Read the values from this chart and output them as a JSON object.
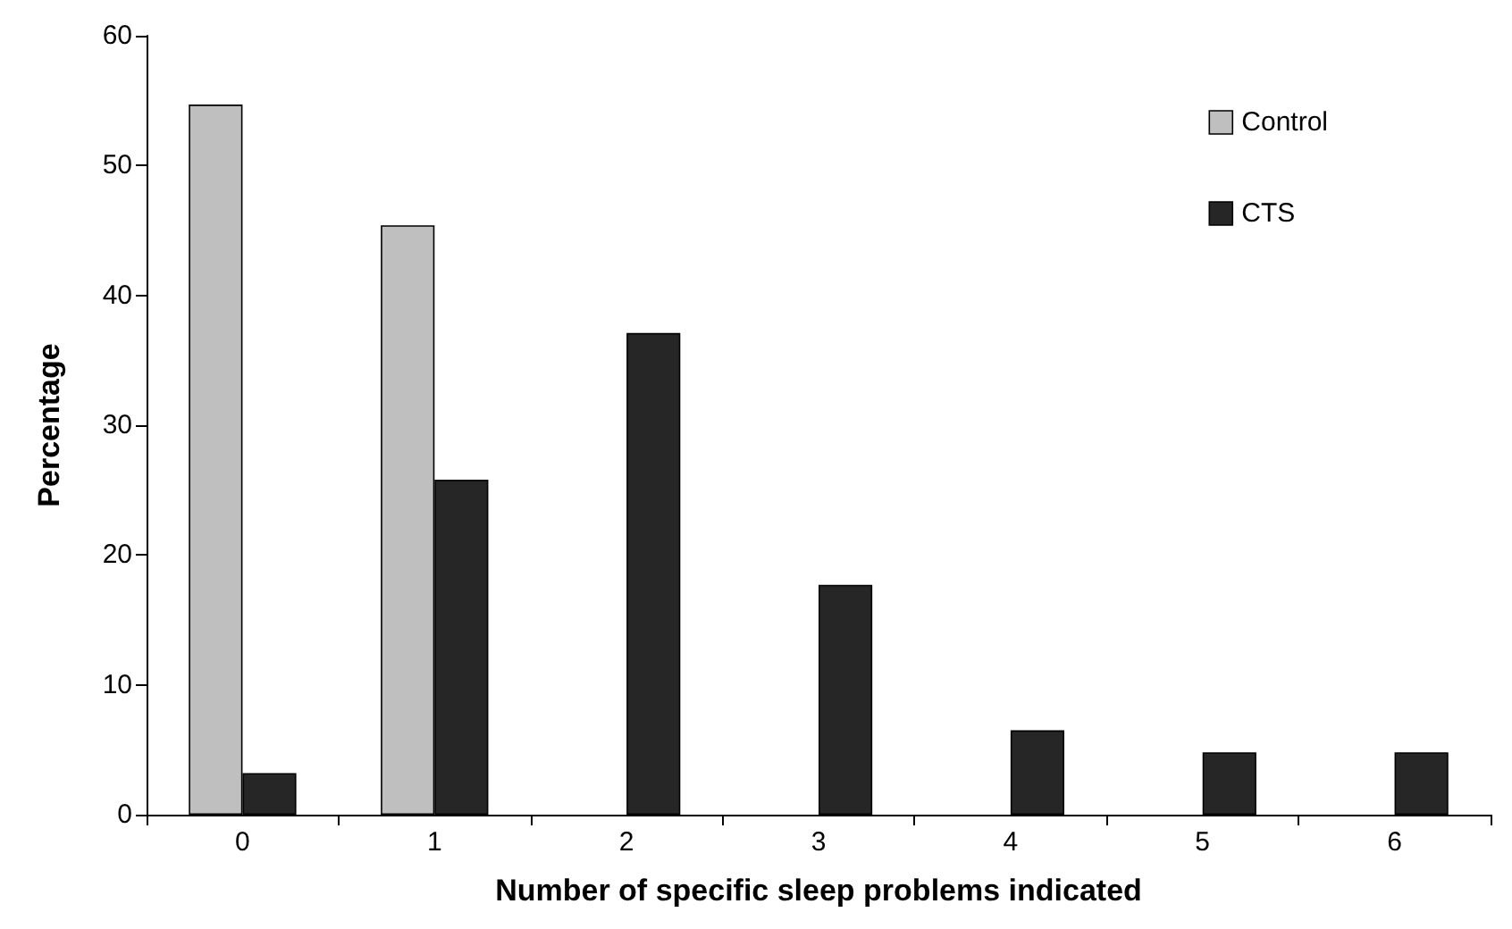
{
  "chart_data": {
    "type": "bar",
    "xlabel": "Number of specific sleep problems indicated",
    "ylabel": "Percentage",
    "categories": [
      "0",
      "1",
      "2",
      "3",
      "4",
      "5",
      "6"
    ],
    "series": [
      {
        "name": "Control",
        "color": "#bfbfbf",
        "values": [
          54.7,
          45.4,
          null,
          null,
          null,
          null,
          null
        ]
      },
      {
        "name": "CTS",
        "color": "#262626",
        "values": [
          3.2,
          25.8,
          37.1,
          17.7,
          6.5,
          4.8,
          4.8
        ]
      }
    ],
    "ylim": [
      0,
      60
    ],
    "yticks": [
      0,
      10,
      20,
      30,
      40,
      50,
      60
    ],
    "grid": false,
    "legend": "top right"
  }
}
